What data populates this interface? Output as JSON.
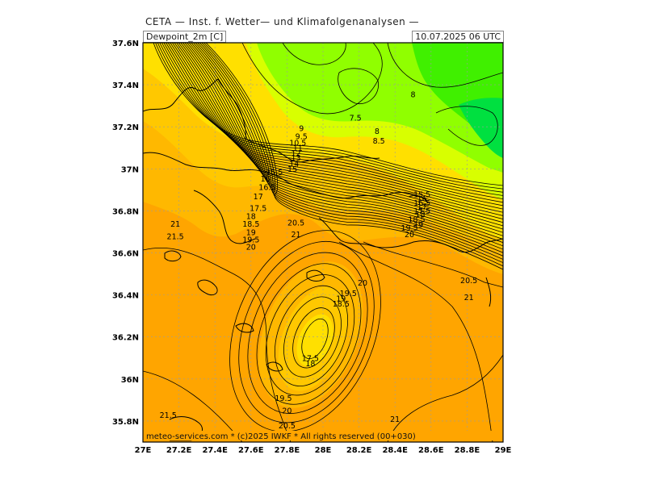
{
  "header": {
    "title": "CETA — Inst. f. Wetter— und Klimafolgenanalysen —",
    "parameter": "Dewpoint_2m [C]",
    "datetime": "10.07.2025 06 UTC"
  },
  "credit": "meteo-services.com * (c)2025 IWKF * All rights reserved (00+030)",
  "colors": {
    "orange": "#ffa500",
    "orange_light": "#ffb800",
    "yellow_orange": "#ffc800",
    "yellow": "#ffe000",
    "yellow_green": "#d8ff00",
    "light_green": "#90ff00",
    "green": "#40f000",
    "bright_green": "#00e040",
    "coast": "#000000",
    "contour": "#000000",
    "grid": "#9c9c9c"
  },
  "lon_ticks": [
    "27E",
    "27.2E",
    "27.4E",
    "27.6E",
    "27.8E",
    "28E",
    "28.2E",
    "28.4E",
    "28.6E",
    "28.8E",
    "29E"
  ],
  "lat_ticks": [
    "37.6N",
    "37.4N",
    "37.2N",
    "37N",
    "36.8N",
    "36.6N",
    "36.4N",
    "36.2N",
    "36N",
    "35.8N"
  ],
  "contour_labels": [
    {
      "t": "9",
      "lon": 27.88,
      "lat": 37.19
    },
    {
      "t": "9.5",
      "lon": 27.88,
      "lat": 37.15
    },
    {
      "t": "10.5",
      "lon": 27.86,
      "lat": 37.12
    },
    {
      "t": "11",
      "lon": 27.86,
      "lat": 37.095
    },
    {
      "t": "12",
      "lon": 27.85,
      "lat": 37.07
    },
    {
      "t": "13",
      "lon": 27.85,
      "lat": 37.05
    },
    {
      "t": "14",
      "lon": 27.84,
      "lat": 37.02
    },
    {
      "t": "15",
      "lon": 27.83,
      "lat": 36.995
    },
    {
      "t": "15.5",
      "lon": 27.73,
      "lat": 36.98
    },
    {
      "t": "16",
      "lon": 27.68,
      "lat": 36.95
    },
    {
      "t": "16.5",
      "lon": 27.69,
      "lat": 36.91
    },
    {
      "t": "17",
      "lon": 27.64,
      "lat": 36.865
    },
    {
      "t": "17.5",
      "lon": 27.64,
      "lat": 36.81
    },
    {
      "t": "18",
      "lon": 27.6,
      "lat": 36.77
    },
    {
      "t": "18.5",
      "lon": 27.6,
      "lat": 36.735
    },
    {
      "t": "19",
      "lon": 27.6,
      "lat": 36.695
    },
    {
      "t": "19.5",
      "lon": 27.6,
      "lat": 36.66
    },
    {
      "t": "20",
      "lon": 27.6,
      "lat": 36.625
    },
    {
      "t": "20.5",
      "lon": 27.85,
      "lat": 36.74
    },
    {
      "t": "21",
      "lon": 27.85,
      "lat": 36.685
    },
    {
      "t": "21",
      "lon": 27.18,
      "lat": 36.735
    },
    {
      "t": "21.5",
      "lon": 27.18,
      "lat": 36.675
    },
    {
      "t": "7.5",
      "lon": 28.18,
      "lat": 37.24
    },
    {
      "t": "8",
      "lon": 28.5,
      "lat": 37.35
    },
    {
      "t": "8",
      "lon": 28.3,
      "lat": 37.175
    },
    {
      "t": "8.5",
      "lon": 28.31,
      "lat": 37.13
    },
    {
      "t": "15.5",
      "lon": 28.55,
      "lat": 36.875
    },
    {
      "t": "16",
      "lon": 28.55,
      "lat": 36.855
    },
    {
      "t": "16.5",
      "lon": 28.55,
      "lat": 36.835
    },
    {
      "t": "17",
      "lon": 28.55,
      "lat": 36.815
    },
    {
      "t": "17.5",
      "lon": 28.55,
      "lat": 36.795
    },
    {
      "t": "18",
      "lon": 28.54,
      "lat": 36.78
    },
    {
      "t": "18.5",
      "lon": 28.52,
      "lat": 36.755
    },
    {
      "t": "19",
      "lon": 28.53,
      "lat": 36.73
    },
    {
      "t": "19.5",
      "lon": 28.48,
      "lat": 36.715
    },
    {
      "t": "20",
      "lon": 28.48,
      "lat": 36.685
    },
    {
      "t": "20.5",
      "lon": 28.81,
      "lat": 36.465
    },
    {
      "t": "21",
      "lon": 28.81,
      "lat": 36.385
    },
    {
      "t": "20",
      "lon": 28.22,
      "lat": 36.455
    },
    {
      "t": "19.5",
      "lon": 28.14,
      "lat": 36.405
    },
    {
      "t": "19",
      "lon": 28.1,
      "lat": 36.38
    },
    {
      "t": "18.5",
      "lon": 28.1,
      "lat": 36.355
    },
    {
      "t": "17.5",
      "lon": 27.93,
      "lat": 36.095
    },
    {
      "t": "18",
      "lon": 27.93,
      "lat": 36.07
    },
    {
      "t": "19.5",
      "lon": 27.78,
      "lat": 35.905
    },
    {
      "t": "20",
      "lon": 27.8,
      "lat": 35.845
    },
    {
      "t": "20.5",
      "lon": 27.8,
      "lat": 35.775
    },
    {
      "t": "21.5",
      "lon": 27.14,
      "lat": 35.825
    },
    {
      "t": "21",
      "lon": 28.4,
      "lat": 35.805
    }
  ]
}
